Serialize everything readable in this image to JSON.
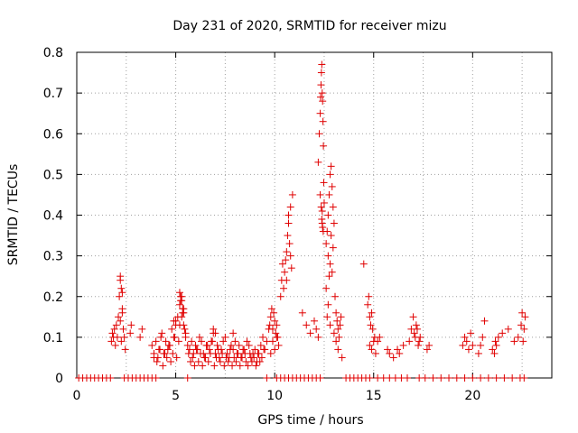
{
  "chart_data": {
    "type": "scatter",
    "title": "Day 231 of 2020, SRMTID for receiver mizu",
    "xlabel": "GPS time / hours",
    "ylabel": "SRMTID / TECUs",
    "xlim": [
      0,
      24
    ],
    "ylim": [
      0,
      0.8
    ],
    "x_ticks": [
      0,
      5,
      10,
      15,
      20
    ],
    "x_tick_labels": [
      "0",
      "5",
      "10",
      "15",
      "20"
    ],
    "x_grid": [
      0,
      2.5,
      5,
      7.5,
      10,
      12.5,
      15,
      17.5,
      20,
      22.5
    ],
    "y_ticks": [
      0,
      0.1,
      0.2,
      0.3,
      0.4,
      0.5,
      0.6,
      0.7,
      0.8
    ],
    "y_tick_labels": [
      "0",
      "0.1",
      "0.2",
      "0.3",
      "0.4",
      "0.5",
      "0.6",
      "0.7",
      "0.8"
    ],
    "grid": true,
    "marker": "+",
    "color": "#e00000",
    "series": [
      {
        "name": "SRMTID",
        "x": [
          0.1,
          0.3,
          0.5,
          0.7,
          0.9,
          1.1,
          1.3,
          1.5,
          1.7,
          2.4,
          2.6,
          2.8,
          3.0,
          3.2,
          3.4,
          3.6,
          3.8,
          4.0,
          5.6,
          9.6,
          10.1,
          10.3,
          10.5,
          10.7,
          10.9,
          11.1,
          11.3,
          11.5,
          11.7,
          11.9,
          12.1,
          12.3,
          13.6,
          13.8,
          14.0,
          14.2,
          14.4,
          14.6,
          14.8,
          15.2,
          15.5,
          15.8,
          16.1,
          16.4,
          16.7,
          17.3,
          17.6,
          18.0,
          18.4,
          18.8,
          19.2,
          19.6,
          20.0,
          20.4,
          20.8,
          21.2,
          21.6,
          22.0,
          22.4,
          22.6,
          1.75,
          1.8,
          1.85,
          1.9,
          1.95,
          2.0,
          2.05,
          2.1,
          2.15,
          2.2,
          2.25,
          2.3,
          2.35,
          2.4,
          2.45,
          2.2,
          2.2,
          2.25,
          2.3,
          2.3,
          2.7,
          2.75,
          3.2,
          3.3,
          3.8,
          3.9,
          4.0,
          4.1,
          4.2,
          4.3,
          4.4,
          4.5,
          4.6,
          4.7,
          4.8,
          4.9,
          5.0,
          5.1,
          5.2,
          5.25,
          5.3,
          5.35,
          5.4,
          5.45,
          5.5,
          5.6,
          5.7,
          5.8,
          5.9,
          6.0,
          6.1,
          6.2,
          6.3,
          6.4,
          6.5,
          6.6,
          6.7,
          6.8,
          6.9,
          7.0,
          7.1,
          7.2,
          7.3,
          7.4,
          7.5,
          7.6,
          7.7,
          7.8,
          7.9,
          8.0,
          8.1,
          8.2,
          8.3,
          8.4,
          8.5,
          8.6,
          8.7,
          8.8,
          8.9,
          9.0,
          9.1,
          9.2,
          9.3,
          9.4,
          9.5,
          9.6,
          9.7,
          3.9,
          4.05,
          4.15,
          4.25,
          4.35,
          4.45,
          4.55,
          4.65,
          4.75,
          4.85,
          4.95,
          5.05,
          5.15,
          5.2,
          5.3,
          5.4,
          5.5,
          5.65,
          5.75,
          5.85,
          5.95,
          6.05,
          6.15,
          6.25,
          6.35,
          6.45,
          6.55,
          6.65,
          6.75,
          6.85,
          6.95,
          7.05,
          7.15,
          7.25,
          7.35,
          7.45,
          7.55,
          7.65,
          7.75,
          7.85,
          7.95,
          8.05,
          8.15,
          8.25,
          8.35,
          8.45,
          8.55,
          8.65,
          8.75,
          8.85,
          8.95,
          9.05,
          9.15,
          9.25,
          9.35,
          9.45,
          5.2,
          5.25,
          5.3,
          5.35,
          5.4,
          4.9,
          5.0,
          6.9,
          7.0,
          7.9,
          9.75,
          9.8,
          9.85,
          9.9,
          9.95,
          10.0,
          10.05,
          10.1,
          10.15,
          10.2,
          9.8,
          9.9,
          10.0,
          10.1,
          10.3,
          10.35,
          10.4,
          10.45,
          10.5,
          10.55,
          10.6,
          10.65,
          10.7,
          10.75,
          10.8,
          10.85,
          10.6,
          10.7,
          10.9,
          10.8,
          11.4,
          11.6,
          11.8,
          12.0,
          12.1,
          12.2,
          12.2,
          12.25,
          12.3,
          12.32,
          12.34,
          12.36,
          12.38,
          12.4,
          12.42,
          12.44,
          12.46,
          12.48,
          12.3,
          12.35,
          12.4,
          12.45,
          12.5,
          12.4,
          12.38,
          12.42,
          12.6,
          12.65,
          12.7,
          12.75,
          12.8,
          12.85,
          12.9,
          12.95,
          13.0,
          12.7,
          12.8,
          12.9,
          12.85,
          12.75,
          12.95,
          13.05,
          12.6,
          12.7,
          12.65,
          12.8,
          13.1,
          13.15,
          13.2,
          13.25,
          13.3,
          13.35,
          13.1,
          13.2,
          13.0,
          13.4,
          14.7,
          14.75,
          14.8,
          14.85,
          14.9,
          14.95,
          15.0,
          15.05,
          14.8,
          14.9,
          15.1,
          15.2,
          15.3,
          14.5,
          15.7,
          15.8,
          16.0,
          16.2,
          16.3,
          16.5,
          16.8,
          16.9,
          17.0,
          17.05,
          17.1,
          17.15,
          17.2,
          17.25,
          17.3,
          17.35,
          17.7,
          17.8,
          19.5,
          19.6,
          19.7,
          19.8,
          19.9,
          20.0,
          20.3,
          20.4,
          20.5,
          20.6,
          21.0,
          21.1,
          21.15,
          21.2,
          21.3,
          21.5,
          21.8,
          22.1,
          22.3,
          22.45,
          22.5,
          22.55,
          22.6,
          22.65
        ],
        "y": [
          0,
          0,
          0,
          0,
          0,
          0,
          0,
          0,
          0,
          0,
          0,
          0,
          0,
          0,
          0,
          0,
          0,
          0,
          0,
          0,
          0,
          0,
          0,
          0,
          0,
          0,
          0,
          0,
          0,
          0,
          0,
          0,
          0,
          0,
          0,
          0,
          0,
          0,
          0,
          0,
          0,
          0,
          0,
          0,
          0,
          0,
          0,
          0,
          0,
          0,
          0,
          0,
          0,
          0,
          0,
          0,
          0,
          0,
          0,
          0,
          0.09,
          0.11,
          0.1,
          0.12,
          0.08,
          0.13,
          0.1,
          0.15,
          0.2,
          0.24,
          0.22,
          0.17,
          0.12,
          0.1,
          0.07,
          0.25,
          0.14,
          0.09,
          0.16,
          0.21,
          0.11,
          0.13,
          0.1,
          0.12,
          0.08,
          0.06,
          0.09,
          0.05,
          0.07,
          0.11,
          0.06,
          0.09,
          0.07,
          0.08,
          0.12,
          0.1,
          0.14,
          0.15,
          0.18,
          0.2,
          0.19,
          0.16,
          0.13,
          0.12,
          0.1,
          0.08,
          0.07,
          0.09,
          0.06,
          0.08,
          0.07,
          0.1,
          0.09,
          0.06,
          0.05,
          0.08,
          0.07,
          0.09,
          0.11,
          0.06,
          0.08,
          0.05,
          0.07,
          0.09,
          0.1,
          0.06,
          0.05,
          0.08,
          0.07,
          0.09,
          0.06,
          0.08,
          0.05,
          0.07,
          0.06,
          0.09,
          0.08,
          0.05,
          0.06,
          0.07,
          0.04,
          0.06,
          0.08,
          0.1,
          0.07,
          0.09,
          0.12,
          0.05,
          0.04,
          0.07,
          0.1,
          0.03,
          0.06,
          0.05,
          0.08,
          0.04,
          0.06,
          0.1,
          0.05,
          0.09,
          0.13,
          0.15,
          0.17,
          0.11,
          0.06,
          0.04,
          0.05,
          0.03,
          0.07,
          0.04,
          0.06,
          0.03,
          0.05,
          0.08,
          0.04,
          0.06,
          0.09,
          0.03,
          0.05,
          0.07,
          0.04,
          0.06,
          0.03,
          0.05,
          0.04,
          0.07,
          0.03,
          0.05,
          0.04,
          0.06,
          0.03,
          0.05,
          0.07,
          0.04,
          0.03,
          0.06,
          0.04,
          0.05,
          0.03,
          0.06,
          0.04,
          0.05,
          0.07,
          0.21,
          0.19,
          0.2,
          0.17,
          0.16,
          0.14,
          0.13,
          0.12,
          0.11,
          0.11,
          0.13,
          0.15,
          0.17,
          0.12,
          0.16,
          0.14,
          0.11,
          0.13,
          0.1,
          0.08,
          0.06,
          0.09,
          0.07,
          0.1,
          0.2,
          0.24,
          0.28,
          0.22,
          0.26,
          0.29,
          0.31,
          0.35,
          0.38,
          0.33,
          0.3,
          0.27,
          0.24,
          0.4,
          0.45,
          0.42,
          0.16,
          0.13,
          0.11,
          0.14,
          0.12,
          0.1,
          0.53,
          0.6,
          0.65,
          0.69,
          0.72,
          0.75,
          0.77,
          0.7,
          0.68,
          0.63,
          0.57,
          0.48,
          0.45,
          0.42,
          0.38,
          0.36,
          0.43,
          0.41,
          0.39,
          0.37,
          0.33,
          0.36,
          0.4,
          0.45,
          0.5,
          0.52,
          0.47,
          0.42,
          0.38,
          0.3,
          0.28,
          0.26,
          0.35,
          0.25,
          0.32,
          0.2,
          0.22,
          0.18,
          0.15,
          0.13,
          0.16,
          0.14,
          0.12,
          0.1,
          0.13,
          0.15,
          0.09,
          0.07,
          0.11,
          0.05,
          0.18,
          0.2,
          0.15,
          0.13,
          0.16,
          0.12,
          0.09,
          0.1,
          0.08,
          0.07,
          0.06,
          0.09,
          0.1,
          0.28,
          0.07,
          0.06,
          0.05,
          0.07,
          0.06,
          0.08,
          0.09,
          0.12,
          0.15,
          0.11,
          0.1,
          0.13,
          0.12,
          0.08,
          0.09,
          0.1,
          0.07,
          0.08,
          0.08,
          0.1,
          0.09,
          0.07,
          0.11,
          0.08,
          0.06,
          0.08,
          0.1,
          0.14,
          0.07,
          0.06,
          0.09,
          0.08,
          0.1,
          0.11,
          0.12,
          0.09,
          0.1,
          0.13,
          0.16,
          0.09,
          0.12,
          0.15
        ]
      }
    ]
  }
}
